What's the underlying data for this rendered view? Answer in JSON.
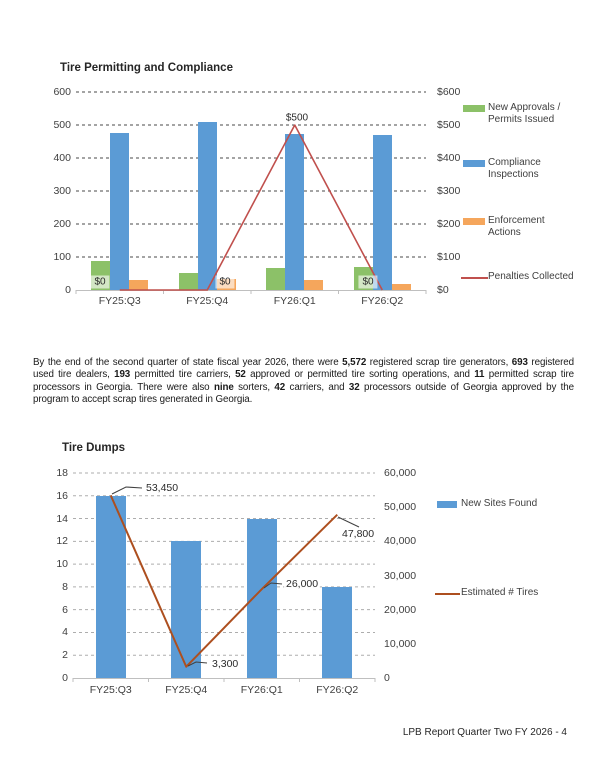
{
  "page": {
    "footer": "LPB Report Quarter Two FY 2026 - 4"
  },
  "paragraph": {
    "segments": [
      {
        "text": "By the end of the second quarter of state fiscal year 2026, there were ",
        "bold": false
      },
      {
        "text": "5,572",
        "bold": true
      },
      {
        "text": " registered scrap tire generators, ",
        "bold": false
      },
      {
        "text": "693",
        "bold": true
      },
      {
        "text": " registered used tire dealers, ",
        "bold": false
      },
      {
        "text": "193",
        "bold": true
      },
      {
        "text": " permitted tire carriers, ",
        "bold": false
      },
      {
        "text": "52",
        "bold": true
      },
      {
        "text": " approved or permitted tire sorting operations, and ",
        "bold": false
      },
      {
        "text": "11",
        "bold": true
      },
      {
        "text": " permitted scrap tire processors in Georgia. There were also ",
        "bold": false
      },
      {
        "text": "nine",
        "bold": true
      },
      {
        "text": " sorters, ",
        "bold": false
      },
      {
        "text": "42",
        "bold": true
      },
      {
        "text": " carriers, and ",
        "bold": false
      },
      {
        "text": "32",
        "bold": true
      },
      {
        "text": " processors outside of Georgia approved by the program to accept scrap tires generated in Georgia.",
        "bold": false
      }
    ]
  },
  "chart_data": [
    {
      "type": "bar",
      "title": "Tire Permitting and Compliance",
      "categories": [
        "FY25:Q3",
        "FY25:Q4",
        "FY26:Q1",
        "FY26:Q2"
      ],
      "left_axis": {
        "min": 0,
        "max": 600,
        "step": 100,
        "ticks": [
          "0",
          "100",
          "200",
          "300",
          "400",
          "500",
          "600"
        ]
      },
      "right_axis": {
        "min": 0,
        "max": 600,
        "step": 100,
        "ticks": [
          "$0",
          "$100",
          "$200",
          "$300",
          "$400",
          "$500",
          "$600"
        ]
      },
      "grid": "dashed",
      "legend_position": "right",
      "series": [
        {
          "name": "New Approvals / Permits Issued",
          "kind": "bar",
          "axis": "left",
          "color": "#8CC168",
          "values": [
            88,
            52,
            68,
            71
          ],
          "legend_lines": [
            "New Approvals /",
            "Permits Issued"
          ]
        },
        {
          "name": "Compliance Inspections",
          "kind": "bar",
          "axis": "left",
          "color": "#5B9BD5",
          "values": [
            475,
            510,
            474,
            470
          ],
          "legend_lines": [
            "Compliance",
            "Inspections"
          ]
        },
        {
          "name": "Enforcement Actions",
          "kind": "bar",
          "axis": "left",
          "color": "#F5A65C",
          "values": [
            29,
            34,
            30,
            17
          ],
          "legend_lines": [
            "Enforcement",
            "Actions"
          ]
        },
        {
          "name": "Penalties Collected",
          "kind": "line",
          "axis": "right",
          "color": "#C0504D",
          "values": [
            0,
            0,
            500,
            0
          ],
          "point_labels": [
            "$0",
            "$0",
            "$500",
            "$0"
          ],
          "legend_lines": [
            "Penalties Collected"
          ]
        }
      ]
    },
    {
      "type": "bar",
      "title": "Tire Dumps",
      "categories": [
        "FY25:Q3",
        "FY25:Q4",
        "FY26:Q1",
        "FY26:Q2"
      ],
      "left_axis": {
        "min": 0,
        "max": 18,
        "step": 2,
        "ticks": [
          "0",
          "2",
          "4",
          "6",
          "8",
          "10",
          "12",
          "14",
          "16",
          "18"
        ]
      },
      "right_axis": {
        "min": 0,
        "max": 60000,
        "step": 10000,
        "ticks": [
          "0",
          "10,000",
          "20,000",
          "30,000",
          "40,000",
          "50,000",
          "60,000"
        ]
      },
      "grid": "dashed",
      "legend_position": "right",
      "series": [
        {
          "name": "New Sites Found",
          "kind": "bar",
          "axis": "left",
          "color": "#5B9BD5",
          "values": [
            16,
            12,
            14,
            8
          ],
          "legend_lines": [
            "New Sites Found"
          ]
        },
        {
          "name": "Estimated # Tires",
          "kind": "line",
          "axis": "right",
          "color": "#AD4F1F",
          "values": [
            53450,
            3300,
            26000,
            47800
          ],
          "point_labels": [
            "53,450",
            "3,300",
            "26,000",
            "47,800"
          ],
          "legend_lines": [
            "Estimated # Tires"
          ]
        }
      ]
    }
  ]
}
